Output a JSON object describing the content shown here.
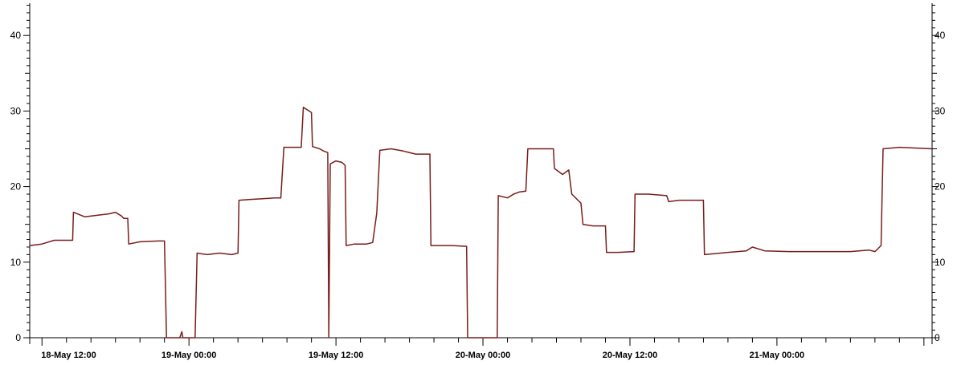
{
  "chart_data": {
    "type": "line",
    "title": "",
    "xlabel": "",
    "ylabel": "",
    "ylim": [
      0,
      45
    ],
    "y_ticks": [
      0,
      10,
      20,
      30,
      40
    ],
    "y_tick_labels": [
      "0",
      "10",
      "20",
      "30",
      "40"
    ],
    "xlim": [
      "2018-05-18 11:00",
      "2018-05-21 12:40"
    ],
    "x_ticks": [
      {
        "t": "2018-05-18 12:00",
        "label": "18-May 12:00"
      },
      {
        "t": "2018-05-19 00:00",
        "label": "19-May 00:00"
      },
      {
        "t": "2018-05-19 12:00",
        "label": "19-May 12:00"
      },
      {
        "t": "2018-05-20 00:00",
        "label": "20-May 00:00"
      },
      {
        "t": "2018-05-20 12:00",
        "label": "20-May 12:00"
      },
      {
        "t": "2018-05-21 00:00",
        "label": "21-May 00:00"
      }
    ],
    "grid": false,
    "legend": "none",
    "series": [
      {
        "color": "#7a1c1c",
        "points": [
          [
            "2018-05-18 11:00",
            12.2
          ],
          [
            "2018-05-18 12:00",
            12.4
          ],
          [
            "2018-05-18 13:00",
            12.9
          ],
          [
            "2018-05-18 14:00",
            12.9
          ],
          [
            "2018-05-18 14:30",
            12.9
          ],
          [
            "2018-05-18 14:34",
            16.6
          ],
          [
            "2018-05-18 15:30",
            16.0
          ],
          [
            "2018-05-18 16:30",
            16.2
          ],
          [
            "2018-05-18 17:30",
            16.4
          ],
          [
            "2018-05-18 18:00",
            16.6
          ],
          [
            "2018-05-18 18:30",
            16.1
          ],
          [
            "2018-05-18 18:40",
            15.8
          ],
          [
            "2018-05-18 19:00",
            15.8
          ],
          [
            "2018-05-18 19:05",
            12.4
          ],
          [
            "2018-05-18 20:00",
            12.7
          ],
          [
            "2018-05-18 21:30",
            12.8
          ],
          [
            "2018-05-18 22:00",
            12.8
          ],
          [
            "2018-05-18 22:10",
            0.0
          ],
          [
            "2018-05-18 23:15",
            0.0
          ],
          [
            "2018-05-18 23:25",
            0.8
          ],
          [
            "2018-05-18 23:30",
            0.0
          ],
          [
            "2018-05-19 00:30",
            0.0
          ],
          [
            "2018-05-19 00:40",
            11.2
          ],
          [
            "2018-05-19 01:30",
            11.0
          ],
          [
            "2018-05-19 02:30",
            11.2
          ],
          [
            "2018-05-19 03:30",
            11.0
          ],
          [
            "2018-05-19 04:00",
            11.2
          ],
          [
            "2018-05-19 04:05",
            18.2
          ],
          [
            "2018-05-19 05:00",
            18.3
          ],
          [
            "2018-05-19 06:00",
            18.4
          ],
          [
            "2018-05-19 07:00",
            18.5
          ],
          [
            "2018-05-19 07:30",
            18.5
          ],
          [
            "2018-05-19 07:45",
            25.2
          ],
          [
            "2018-05-19 08:30",
            25.2
          ],
          [
            "2018-05-19 09:10",
            25.2
          ],
          [
            "2018-05-19 09:20",
            30.5
          ],
          [
            "2018-05-19 10:00",
            29.8
          ],
          [
            "2018-05-19 10:05",
            25.3
          ],
          [
            "2018-05-19 10:40",
            25.0
          ],
          [
            "2018-05-19 11:00",
            24.7
          ],
          [
            "2018-05-19 11:20",
            24.5
          ],
          [
            "2018-05-19 11:25",
            0.0
          ],
          [
            "2018-05-19 11:32",
            23.0
          ],
          [
            "2018-05-19 12:00",
            23.4
          ],
          [
            "2018-05-19 12:30",
            23.2
          ],
          [
            "2018-05-19 12:45",
            22.8
          ],
          [
            "2018-05-19 12:50",
            12.2
          ],
          [
            "2018-05-19 13:30",
            12.4
          ],
          [
            "2018-05-19 14:30",
            12.4
          ],
          [
            "2018-05-19 15:00",
            12.6
          ],
          [
            "2018-05-19 15:20",
            16.5
          ],
          [
            "2018-05-19 15:35",
            24.8
          ],
          [
            "2018-05-19 16:30",
            25.0
          ],
          [
            "2018-05-19 17:30",
            24.7
          ],
          [
            "2018-05-19 18:30",
            24.3
          ],
          [
            "2018-05-19 19:30",
            24.3
          ],
          [
            "2018-05-19 19:40",
            24.3
          ],
          [
            "2018-05-19 19:45",
            12.2
          ],
          [
            "2018-05-19 20:30",
            12.2
          ],
          [
            "2018-05-19 21:30",
            12.2
          ],
          [
            "2018-05-19 22:30",
            12.1
          ],
          [
            "2018-05-19 22:40",
            12.1
          ],
          [
            "2018-05-19 22:45",
            0.0
          ],
          [
            "2018-05-20 01:10",
            0.0
          ],
          [
            "2018-05-20 01:15",
            18.8
          ],
          [
            "2018-05-20 02:00",
            18.5
          ],
          [
            "2018-05-20 02:30",
            19.0
          ],
          [
            "2018-05-20 03:00",
            19.3
          ],
          [
            "2018-05-20 03:30",
            19.4
          ],
          [
            "2018-05-20 03:40",
            25.0
          ],
          [
            "2018-05-20 04:30",
            25.0
          ],
          [
            "2018-05-20 05:45",
            25.0
          ],
          [
            "2018-05-20 05:50",
            22.4
          ],
          [
            "2018-05-20 06:30",
            21.6
          ],
          [
            "2018-05-20 07:00",
            22.2
          ],
          [
            "2018-05-20 07:15",
            19.0
          ],
          [
            "2018-05-20 08:00",
            17.8
          ],
          [
            "2018-05-20 08:10",
            15.0
          ],
          [
            "2018-05-20 09:00",
            14.8
          ],
          [
            "2018-05-20 10:00",
            14.8
          ],
          [
            "2018-05-20 10:05",
            11.3
          ],
          [
            "2018-05-20 11:00",
            11.3
          ],
          [
            "2018-05-20 12:20",
            11.4
          ],
          [
            "2018-05-20 12:25",
            19.0
          ],
          [
            "2018-05-20 13:30",
            19.0
          ],
          [
            "2018-05-20 15:00",
            18.8
          ],
          [
            "2018-05-20 15:10",
            18.0
          ],
          [
            "2018-05-20 16:00",
            18.2
          ],
          [
            "2018-05-20 18:00",
            18.2
          ],
          [
            "2018-05-20 18:05",
            11.0
          ],
          [
            "2018-05-20 20:00",
            11.3
          ],
          [
            "2018-05-20 21:30",
            11.5
          ],
          [
            "2018-05-20 22:00",
            12.0
          ],
          [
            "2018-05-20 23:00",
            11.5
          ],
          [
            "2018-05-21 01:00",
            11.4
          ],
          [
            "2018-05-21 06:00",
            11.4
          ],
          [
            "2018-05-21 07:30",
            11.6
          ],
          [
            "2018-05-21 08:00",
            11.4
          ],
          [
            "2018-05-21 08:30",
            12.2
          ],
          [
            "2018-05-21 08:40",
            25.0
          ],
          [
            "2018-05-21 10:00",
            25.2
          ],
          [
            "2018-05-21 12:40",
            25.0
          ]
        ]
      }
    ]
  }
}
